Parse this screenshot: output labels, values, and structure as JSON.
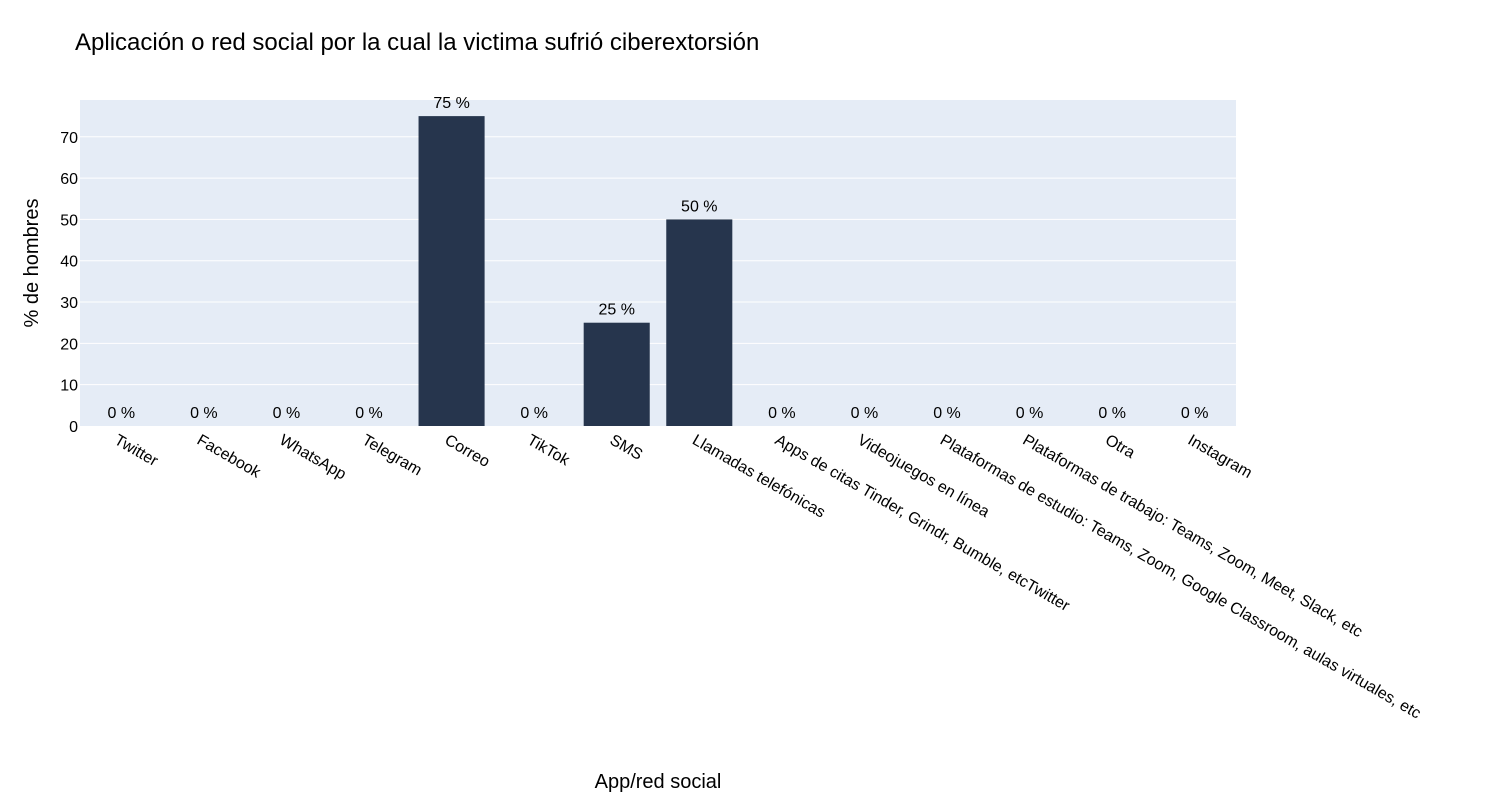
{
  "chart_data": {
    "type": "bar",
    "title": "Aplicación o red social por la cual la victima sufrió ciberextorsión",
    "xlabel": "App/red social",
    "ylabel": "% de hombres",
    "categories": [
      "Twitter",
      "Facebook",
      "WhatsApp",
      "Telegram",
      "Correo",
      "TikTok",
      "SMS",
      "Llamadas telefónicas",
      "Apps de citas Tinder, Grindr, Bumble, etcTwitter",
      "Videojuegos en línea",
      "Plataformas de estudio: Teams, Zoom, Google Classroom, aulas virtuales, etc",
      "Plataformas de trabajo: Teams, Zoom, Meet, Slack, etc",
      "Otra",
      "Instagram"
    ],
    "values": [
      0,
      0,
      0,
      0,
      75,
      0,
      25,
      50,
      0,
      0,
      0,
      0,
      0,
      0
    ],
    "data_labels": [
      "0 %",
      "0 %",
      "0 %",
      "0 %",
      "75 %",
      "0 %",
      "25 %",
      "50 %",
      "0 %",
      "0 %",
      "0 %",
      "0 %",
      "0 %",
      "0 %"
    ],
    "ylim": [
      0,
      78.9
    ],
    "yticks": [
      0,
      10,
      20,
      30,
      40,
      50,
      60,
      70
    ],
    "grid": true,
    "legend": "none",
    "colors": {
      "bar": "#26354d",
      "plot_bg": "#e5ecf6",
      "grid": "#ffffff"
    }
  }
}
